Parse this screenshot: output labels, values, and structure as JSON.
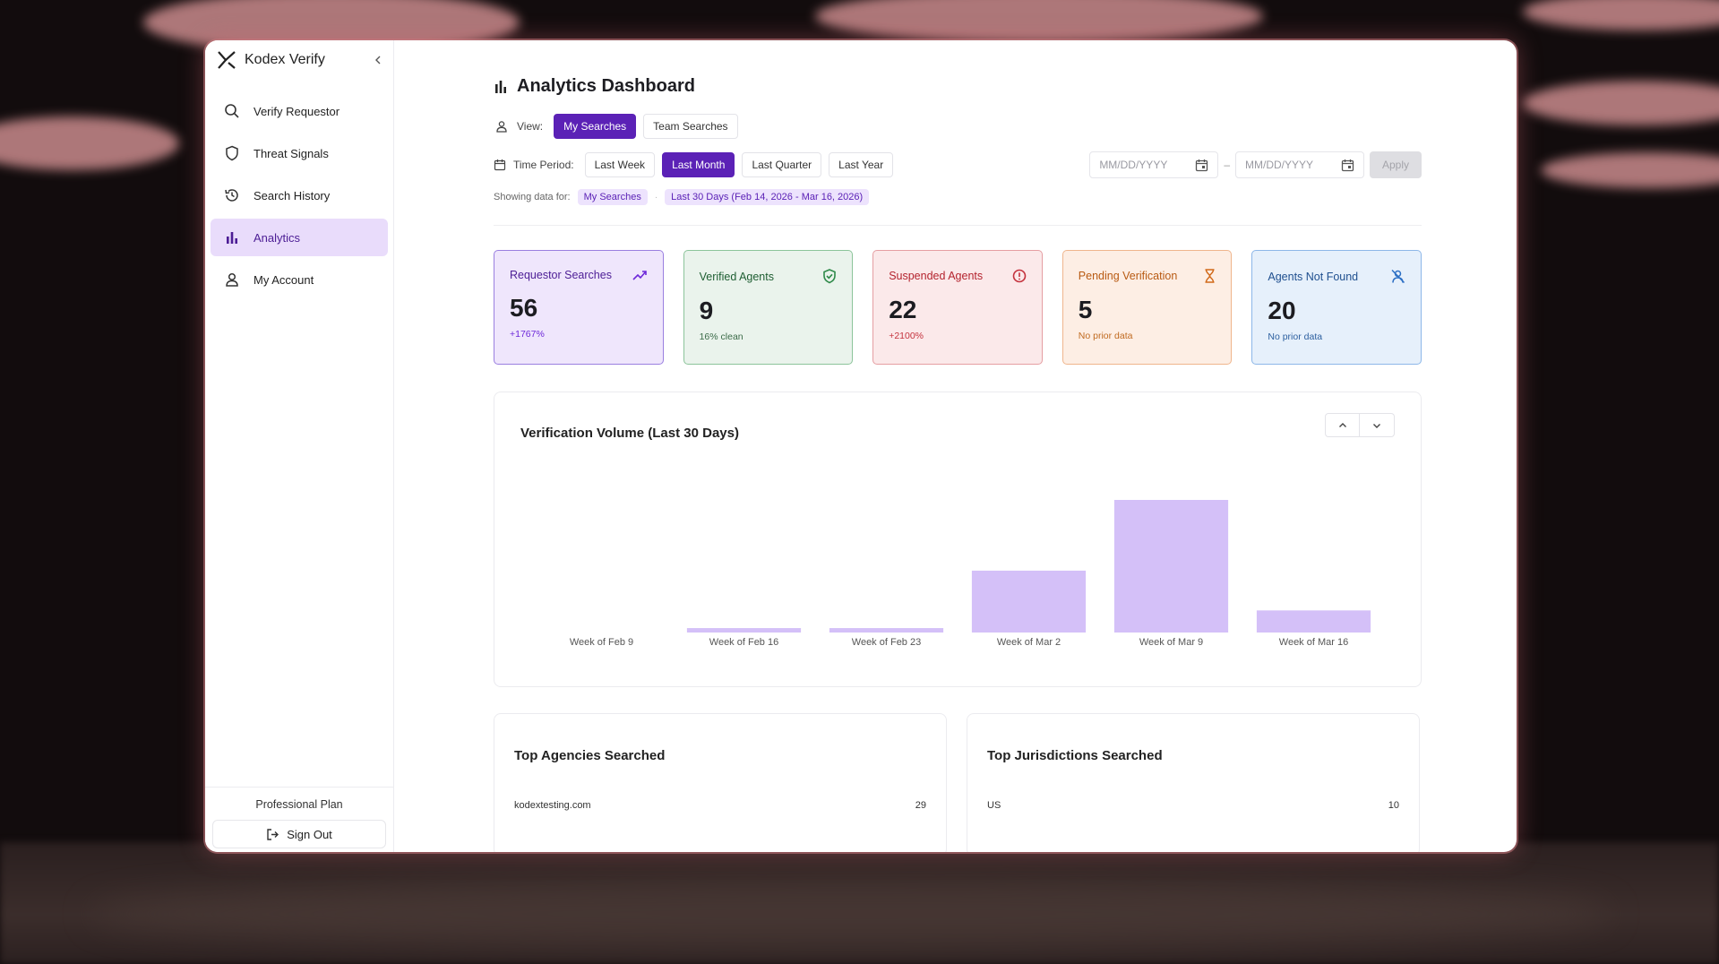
{
  "brand": {
    "name": "Kodex Verify"
  },
  "sidebar": {
    "items": [
      {
        "label": "Verify Requestor",
        "icon": "search-icon"
      },
      {
        "label": "Threat Signals",
        "icon": "shield-icon"
      },
      {
        "label": "Search History",
        "icon": "history-icon"
      },
      {
        "label": "Analytics",
        "icon": "bar-chart-icon",
        "active": true
      },
      {
        "label": "My Account",
        "icon": "user-icon"
      }
    ],
    "plan": "Professional Plan",
    "sign_out": "Sign Out"
  },
  "header": {
    "title": "Analytics Dashboard"
  },
  "view": {
    "label": "View:",
    "options": [
      "My Searches",
      "Team Searches"
    ],
    "selected": "My Searches"
  },
  "period": {
    "label": "Time Period:",
    "options": [
      "Last Week",
      "Last Month",
      "Last Quarter",
      "Last Year"
    ],
    "selected": "Last Month",
    "start_placeholder": "MM/DD/YYYY",
    "end_placeholder": "MM/DD/YYYY",
    "dash": "–",
    "apply": "Apply"
  },
  "showing": {
    "label": "Showing data for:",
    "scope": "My Searches",
    "range": "Last 30 Days (Feb 14, 2026 - Mar 16, 2026)"
  },
  "stats": [
    {
      "label": "Requestor Searches",
      "value": "56",
      "sub": "+1767%",
      "icon": "trending-up-icon",
      "color": "#6d28d9"
    },
    {
      "label": "Verified Agents",
      "value": "9",
      "sub": "16% clean",
      "icon": "shield-check-icon",
      "color": "#2f8a4a"
    },
    {
      "label": "Suspended Agents",
      "value": "22",
      "sub": "+2100%",
      "icon": "alert-circle-icon",
      "color": "#c4323d"
    },
    {
      "label": "Pending Verification",
      "value": "5",
      "sub": "No prior data",
      "icon": "hourglass-icon",
      "color": "#d26a1a"
    },
    {
      "label": "Agents Not Found",
      "value": "20",
      "sub": "No prior data",
      "icon": "user-off-icon",
      "color": "#2c6fc4"
    }
  ],
  "chart_data": {
    "type": "bar",
    "title": "Verification Volume (Last 30 Days)",
    "categories": [
      "Week of Feb 9",
      "Week of Feb 16",
      "Week of Feb 23",
      "Week of Mar 2",
      "Week of Mar 9",
      "Week of Mar 16"
    ],
    "values": [
      0,
      1,
      1,
      14,
      30,
      5
    ],
    "ylim": [
      0,
      30
    ],
    "grid": false,
    "legend": "none",
    "color": "#d4c0f8"
  },
  "agencies": {
    "title": "Top Agencies Searched",
    "rows": [
      {
        "name": "kodextesting.com",
        "count": "29"
      }
    ]
  },
  "jurisdictions": {
    "title": "Top Jurisdictions Searched",
    "rows": [
      {
        "name": "US",
        "count": "10"
      }
    ]
  }
}
